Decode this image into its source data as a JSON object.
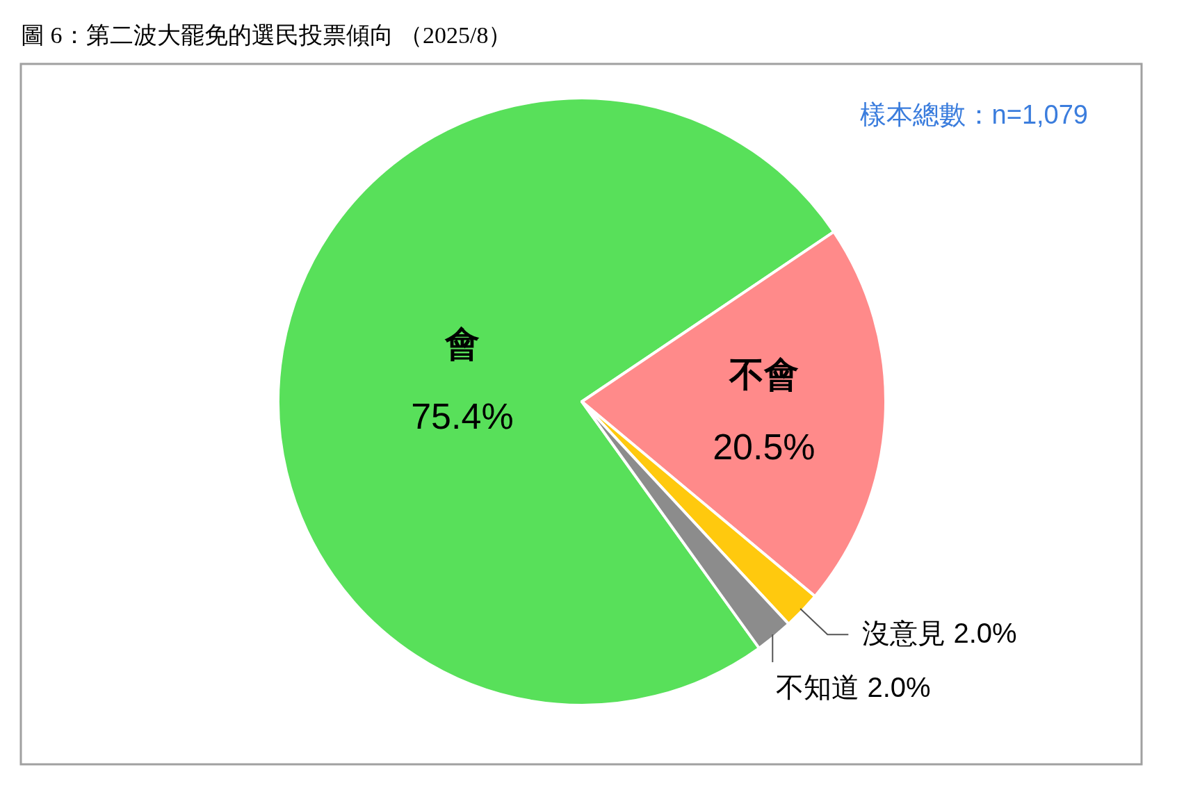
{
  "chart_data": {
    "type": "pie",
    "title": "圖 6：第二波大罷免的選民投票傾向 （2025/8）",
    "annotations": [
      "樣本總數：n=1,079"
    ],
    "categories": [
      "會",
      "不會",
      "沒意見",
      "不知道"
    ],
    "values": [
      75.4,
      20.5,
      2.0,
      2.0
    ],
    "colors": [
      "#58e05a",
      "#ff8a8a",
      "#ffc90e",
      "#8c8c8c"
    ],
    "value_labels": [
      "75.4%",
      "20.5%",
      "2.0%",
      "2.0%"
    ]
  }
}
